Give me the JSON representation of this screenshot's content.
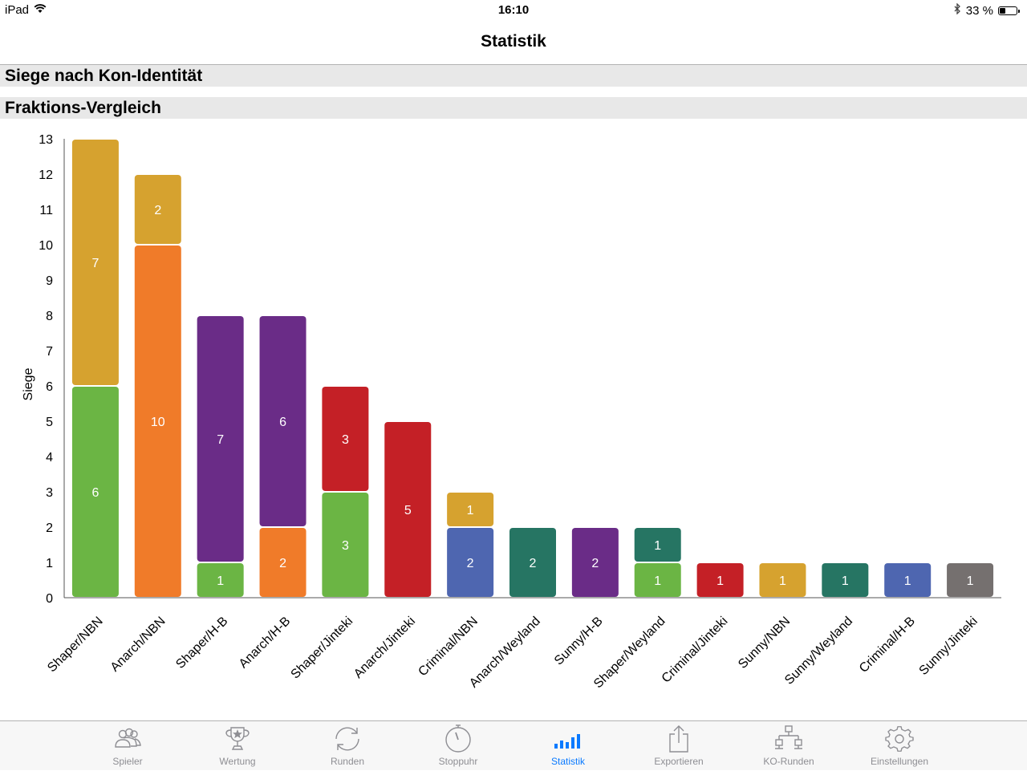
{
  "status_bar": {
    "device": "iPad",
    "time": "16:10",
    "battery": "33 %",
    "battery_level": 0.33
  },
  "nav": {
    "title": "Statistik"
  },
  "sections": {
    "kon_identity": "Siege nach Kon-Identität",
    "faction_comparison": "Fraktions-Vergleich"
  },
  "colors": {
    "green": "#6bb544",
    "gold": "#d6a22f",
    "orange": "#f07b29",
    "purple": "#6a2c87",
    "red": "#c42026",
    "blue": "#4e66b0",
    "teal": "#267563",
    "gray": "#75706f",
    "accent": "#0a7aff"
  },
  "chart_data": {
    "type": "bar",
    "stacked": true,
    "ylabel": "Siege",
    "ylim": [
      0,
      13
    ],
    "yticks": [
      0,
      1,
      2,
      3,
      4,
      5,
      6,
      7,
      8,
      9,
      10,
      11,
      12,
      13
    ],
    "grid": false,
    "categories": [
      "Shaper/NBN",
      "Anarch/NBN",
      "Shaper/H-B",
      "Anarch/H-B",
      "Shaper/Jinteki",
      "Anarch/Jinteki",
      "Criminal/NBN",
      "Anarch/Weyland",
      "Sunny/H-B",
      "Shaper/Weyland",
      "Criminal/Jinteki",
      "Sunny/NBN",
      "Sunny/Weyland",
      "Criminal/H-B",
      "Sunny/Jinteki"
    ],
    "segments": [
      [
        {
          "value": 6,
          "color": "green"
        },
        {
          "value": 7,
          "color": "gold"
        }
      ],
      [
        {
          "value": 10,
          "color": "orange"
        },
        {
          "value": 2,
          "color": "gold"
        }
      ],
      [
        {
          "value": 1,
          "color": "green"
        },
        {
          "value": 7,
          "color": "purple"
        }
      ],
      [
        {
          "value": 2,
          "color": "orange"
        },
        {
          "value": 6,
          "color": "purple"
        }
      ],
      [
        {
          "value": 3,
          "color": "green"
        },
        {
          "value": 3,
          "color": "red"
        }
      ],
      [
        {
          "value": 5,
          "color": "red"
        }
      ],
      [
        {
          "value": 2,
          "color": "blue"
        },
        {
          "value": 1,
          "color": "gold"
        }
      ],
      [
        {
          "value": 2,
          "color": "teal"
        }
      ],
      [
        {
          "value": 2,
          "color": "purple"
        }
      ],
      [
        {
          "value": 1,
          "color": "green"
        },
        {
          "value": 1,
          "color": "teal"
        }
      ],
      [
        {
          "value": 1,
          "color": "red"
        }
      ],
      [
        {
          "value": 1,
          "color": "gold"
        }
      ],
      [
        {
          "value": 1,
          "color": "teal"
        }
      ],
      [
        {
          "value": 1,
          "color": "blue"
        }
      ],
      [
        {
          "value": 1,
          "color": "gray"
        }
      ]
    ]
  },
  "tabs": [
    {
      "label": "Spieler",
      "icon": "players-icon"
    },
    {
      "label": "Wertung",
      "icon": "trophy-icon"
    },
    {
      "label": "Runden",
      "icon": "refresh-icon"
    },
    {
      "label": "Stoppuhr",
      "icon": "stopwatch-icon"
    },
    {
      "label": "Statistik",
      "icon": "statistics-icon",
      "active": true
    },
    {
      "label": "Exportieren",
      "icon": "share-icon"
    },
    {
      "label": "KO-Runden",
      "icon": "bracket-icon"
    },
    {
      "label": "Einstellungen",
      "icon": "gear-icon"
    }
  ]
}
